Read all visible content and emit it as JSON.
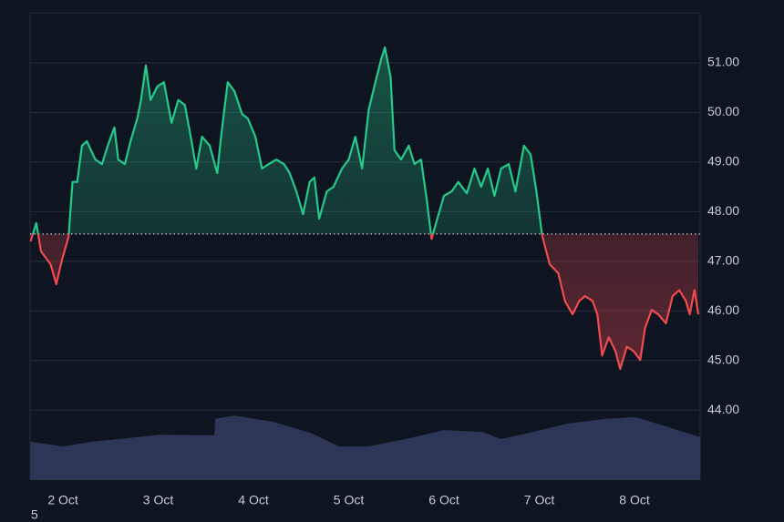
{
  "chart_data": {
    "type": "line",
    "x": [
      1.66,
      1.72,
      1.77,
      1.87,
      1.93,
      1.99,
      2.06,
      2.1,
      2.15,
      2.2,
      2.25,
      2.34,
      2.41,
      2.47,
      2.54,
      2.58,
      2.65,
      2.71,
      2.78,
      2.82,
      2.87,
      2.92,
      2.99,
      3.06,
      3.14,
      3.21,
      3.28,
      3.35,
      3.4,
      3.46,
      3.54,
      3.62,
      3.66,
      3.73,
      3.8,
      3.88,
      3.94,
      4.02,
      4.09,
      4.16,
      4.24,
      4.32,
      4.38,
      4.45,
      4.52,
      4.59,
      4.64,
      4.69,
      4.77,
      4.84,
      4.93,
      5.0,
      5.07,
      5.14,
      5.21,
      5.28,
      5.34,
      5.38,
      5.44,
      5.48,
      5.55,
      5.63,
      5.69,
      5.76,
      5.82,
      5.87,
      5.93,
      6.0,
      6.08,
      6.15,
      6.24,
      6.32,
      6.39,
      6.46,
      6.53,
      6.6,
      6.68,
      6.75,
      6.84,
      6.91,
      6.97,
      7.03,
      7.11,
      7.2,
      7.27,
      7.35,
      7.42,
      7.48,
      7.56,
      7.61,
      7.66,
      7.73,
      7.8,
      7.85,
      7.92,
      7.99,
      8.06,
      8.11,
      8.18,
      8.25,
      8.33,
      8.4,
      8.47,
      8.54,
      8.58,
      8.63,
      8.67
    ],
    "values": [
      47.4,
      47.77,
      47.2,
      46.94,
      46.54,
      47.03,
      47.5,
      48.6,
      48.6,
      49.33,
      49.42,
      49.05,
      48.96,
      49.33,
      49.7,
      49.05,
      48.96,
      49.42,
      49.88,
      50.25,
      50.95,
      50.25,
      50.52,
      50.61,
      49.79,
      50.25,
      50.15,
      49.42,
      48.87,
      49.51,
      49.33,
      48.78,
      49.51,
      50.61,
      50.43,
      49.97,
      49.88,
      49.51,
      48.87,
      48.96,
      49.05,
      48.96,
      48.78,
      48.41,
      47.95,
      48.6,
      48.69,
      47.86,
      48.41,
      48.5,
      48.87,
      49.05,
      49.51,
      48.87,
      50.06,
      50.61,
      51.07,
      51.31,
      50.71,
      49.24,
      49.05,
      49.33,
      48.96,
      49.05,
      48.23,
      47.45,
      47.86,
      48.32,
      48.41,
      48.6,
      48.37,
      48.87,
      48.5,
      48.87,
      48.32,
      48.87,
      48.96,
      48.41,
      49.33,
      49.15,
      48.41,
      47.53,
      46.94,
      46.76,
      46.2,
      45.93,
      46.2,
      46.3,
      46.2,
      45.93,
      45.1,
      45.47,
      45.19,
      44.83,
      45.28,
      45.19,
      45.01,
      45.65,
      46.02,
      45.93,
      45.75,
      46.3,
      46.42,
      46.2,
      45.93,
      46.42,
      45.93
    ],
    "baseline": 47.55,
    "color_up": "#26c98a",
    "color_down": "#ef4b50",
    "xlim": [
      1.655,
      8.689
    ],
    "xticks": [
      {
        "value": 2,
        "label": "2 Oct"
      },
      {
        "value": 3,
        "label": "3 Oct"
      },
      {
        "value": 4,
        "label": "4 Oct"
      },
      {
        "value": 5,
        "label": "5 Oct"
      },
      {
        "value": 6,
        "label": "6 Oct"
      },
      {
        "value": 7,
        "label": "7 Oct"
      },
      {
        "value": 8,
        "label": "8 Oct"
      }
    ],
    "ylim": [
      42.59,
      52.01
    ],
    "yticks": [
      {
        "value": 44,
        "label": "44.00"
      },
      {
        "value": 45,
        "label": "45.00"
      },
      {
        "value": 46,
        "label": "46.00"
      },
      {
        "value": 47,
        "label": "47.00"
      },
      {
        "value": 48,
        "label": "48.00"
      },
      {
        "value": 49,
        "label": "49.00"
      },
      {
        "value": 50,
        "label": "50.00"
      },
      {
        "value": 51,
        "label": "51.00"
      }
    ],
    "grid": true,
    "y2lim": [
      0,
      100
    ],
    "volume": {
      "type": "area",
      "axis": "y2",
      "color": "#2e3658",
      "x": [
        1.66,
        2.0,
        2.3,
        2.6,
        3.0,
        3.59,
        3.6,
        3.8,
        4.2,
        4.6,
        4.9,
        5.2,
        5.6,
        6.0,
        6.4,
        6.6,
        6.9,
        7.3,
        7.7,
        8.0,
        8.3,
        8.69
      ],
      "values": [
        8.2,
        7.2,
        8.2,
        8.8,
        9.7,
        9.6,
        13.1,
        13.8,
        12.5,
        10.1,
        7.2,
        7.2,
        8.8,
        10.7,
        10.3,
        8.8,
        10.1,
        12.1,
        13.1,
        13.5,
        11.7,
        9.2
      ]
    },
    "corner_text": "5"
  }
}
